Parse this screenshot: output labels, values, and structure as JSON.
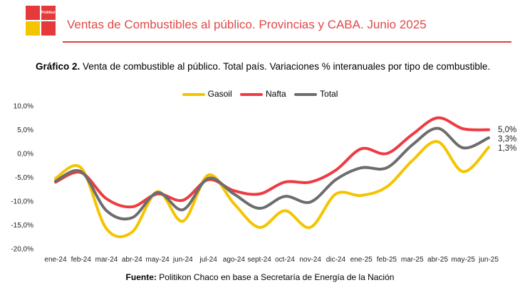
{
  "header": {
    "logo_text": "Politikon",
    "title": "Ventas de Combustibles al público. Provincias y CABA. Junio 2025"
  },
  "chart_heading": {
    "label": "Gráfico 2.",
    "text": " Venta de combustible al público. Total país. Variaciones % interanuales por tipo de combustible."
  },
  "source": {
    "label": "Fuente:",
    "text": " Politikon Chaco en base a Secretaría de Energía de la Nación"
  },
  "chart_data": {
    "type": "line",
    "categories": [
      "ene-24",
      "feb-24",
      "mar-24",
      "abr-24",
      "may-24",
      "jun-24",
      "jul-24",
      "ago-24",
      "sept-24",
      "oct-24",
      "nov-24",
      "dic-24",
      "ene-25",
      "feb-25",
      "mar-25",
      "abr-25",
      "may-25",
      "jun-25"
    ],
    "ylim": [
      -20,
      10
    ],
    "yticks": [
      10,
      5,
      0,
      -5,
      -10,
      -15,
      -20
    ],
    "ytick_labels": [
      "10,0%",
      "5,0%",
      "0,0%",
      "-5,0%",
      "-10,0%",
      "-15,0%",
      "-20,0%"
    ],
    "legend_position": "top-center",
    "grid": false,
    "series": [
      {
        "name": "Gasoil",
        "color": "#f5c400",
        "values": [
          -5.2,
          -3.0,
          -15.8,
          -16.5,
          -8.0,
          -14.2,
          -4.5,
          -10.5,
          -15.5,
          -12.0,
          -15.5,
          -8.5,
          -8.8,
          -7.0,
          -1.5,
          2.5,
          -3.8,
          1.3
        ]
      },
      {
        "name": "Nafta",
        "color": "#ee3b43",
        "values": [
          -6.0,
          -4.0,
          -9.5,
          -11.2,
          -8.5,
          -9.8,
          -5.5,
          -7.8,
          -8.5,
          -6.0,
          -6.0,
          -3.5,
          1.0,
          0.0,
          4.0,
          7.5,
          5.2,
          5.0
        ]
      },
      {
        "name": "Total",
        "color": "#6d6d6d",
        "values": [
          -5.8,
          -3.8,
          -12.0,
          -13.5,
          -8.2,
          -11.8,
          -5.2,
          -8.5,
          -11.5,
          -9.0,
          -10.2,
          -5.5,
          -3.0,
          -3.0,
          1.8,
          5.3,
          1.2,
          3.3
        ]
      }
    ],
    "end_labels": [
      "5,0%",
      "3,3%",
      "1,3%"
    ]
  }
}
